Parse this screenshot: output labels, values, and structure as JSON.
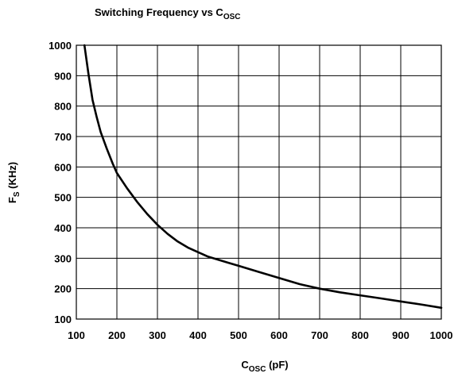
{
  "chart_data": {
    "type": "line",
    "title": {
      "text": "Switching Frequency vs C",
      "sub": "OSC"
    },
    "xlabel": {
      "text": "C",
      "sub": "OSC",
      "tail": " (pF)"
    },
    "ylabel": {
      "text": "F",
      "sub": "S",
      "tail": " (KHz)"
    },
    "xlim": [
      100,
      1000
    ],
    "ylim": [
      100,
      1000
    ],
    "x_ticks": [
      "100",
      "200",
      "300",
      "400",
      "500",
      "600",
      "700",
      "800",
      "900",
      "1000"
    ],
    "y_ticks": [
      "100",
      "200",
      "300",
      "400",
      "500",
      "600",
      "700",
      "800",
      "900",
      "1000"
    ],
    "grid": true,
    "series": [
      {
        "color": "#000000",
        "x": [
          120,
          130,
          140,
          150,
          160,
          175,
          190,
          200,
          225,
          250,
          275,
          300,
          325,
          350,
          375,
          400,
          425,
          450,
          475,
          500,
          550,
          600,
          650,
          700,
          750,
          800,
          850,
          900,
          950,
          1000
        ],
        "y": [
          1000,
          905,
          820,
          765,
          715,
          660,
          610,
          580,
          530,
          485,
          445,
          410,
          380,
          355,
          335,
          320,
          305,
          295,
          285,
          275,
          255,
          235,
          215,
          200,
          188,
          178,
          168,
          158,
          148,
          137
        ]
      }
    ]
  }
}
